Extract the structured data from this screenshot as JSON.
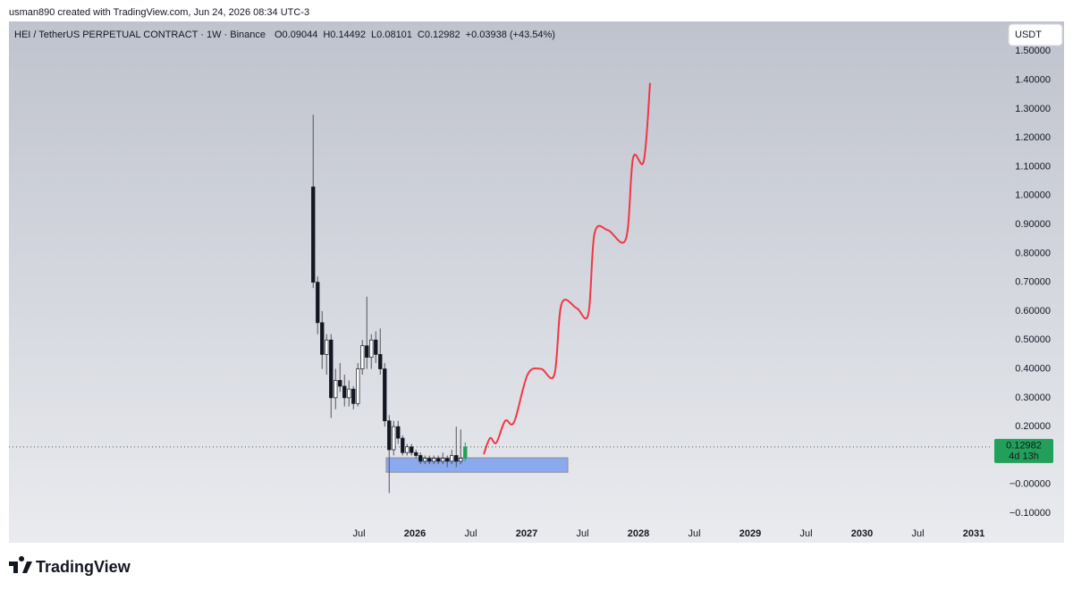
{
  "header": {
    "credit": "usman890 created with TradingView.com, Jun 24, 2026 08:34 UTC-3",
    "logo": "TradingView",
    "currency_button": "USDT"
  },
  "chart_data": {
    "type": "candlestick",
    "symbol": "HEI / TetherUS PERPETUAL CONTRACT · 1W · Binance",
    "ohlc_labels": [
      "O",
      "H",
      "L",
      "C"
    ],
    "change": "+0.03938 (+43.54%)",
    "countdown": "4d 13h",
    "up_color": "#ffffff",
    "down_color": "#131722",
    "last_color": "#22a05a",
    "x": [
      2025.09,
      2025.13,
      2025.17,
      2025.21,
      2025.25,
      2025.29,
      2025.33,
      2025.37,
      2025.41,
      2025.45,
      2025.49,
      2025.53,
      2025.57,
      2025.61,
      2025.65,
      2025.69,
      2025.73,
      2025.77,
      2025.81,
      2025.85,
      2025.89,
      2025.93,
      2025.97,
      2026.01,
      2026.05,
      2026.09,
      2026.13,
      2026.17,
      2026.21,
      2026.25,
      2026.29,
      2026.33,
      2026.37,
      2026.41,
      2026.45
    ],
    "open": [
      1.03,
      0.7,
      0.56,
      0.45,
      0.5,
      0.3,
      0.36,
      0.34,
      0.3,
      0.33,
      0.28,
      0.4,
      0.48,
      0.44,
      0.5,
      0.45,
      0.4,
      0.22,
      0.12,
      0.2,
      0.16,
      0.11,
      0.13,
      0.11,
      0.1,
      0.08,
      0.09,
      0.08,
      0.09,
      0.08,
      0.09,
      0.08,
      0.1,
      0.08,
      0.09044
    ],
    "high": [
      1.28,
      0.72,
      0.6,
      0.52,
      0.52,
      0.4,
      0.42,
      0.38,
      0.36,
      0.34,
      0.42,
      0.5,
      0.65,
      0.52,
      0.53,
      0.54,
      0.42,
      0.24,
      0.22,
      0.22,
      0.17,
      0.14,
      0.14,
      0.12,
      0.11,
      0.1,
      0.1,
      0.1,
      0.1,
      0.11,
      0.1,
      0.12,
      0.2,
      0.19,
      0.14492
    ],
    "low": [
      0.68,
      0.52,
      0.4,
      0.38,
      0.23,
      0.26,
      0.32,
      0.27,
      0.27,
      0.26,
      0.27,
      0.38,
      0.4,
      0.4,
      0.42,
      0.38,
      0.2,
      -0.03,
      0.1,
      0.14,
      0.1,
      0.1,
      0.1,
      0.09,
      0.07,
      0.07,
      0.07,
      0.07,
      0.07,
      0.07,
      0.06,
      0.07,
      0.06,
      0.07,
      0.08101
    ],
    "close": [
      0.7,
      0.56,
      0.45,
      0.5,
      0.3,
      0.36,
      0.34,
      0.3,
      0.33,
      0.28,
      0.4,
      0.48,
      0.44,
      0.5,
      0.45,
      0.4,
      0.22,
      0.12,
      0.2,
      0.16,
      0.11,
      0.13,
      0.11,
      0.1,
      0.08,
      0.09,
      0.08,
      0.09,
      0.08,
      0.09,
      0.08,
      0.1,
      0.08,
      0.09,
      0.12982
    ],
    "projection": {
      "color": "#f23645",
      "x": [
        2026.616,
        2026.672,
        2026.728,
        2026.808,
        2026.888,
        2027.008,
        2027.128,
        2027.248,
        2027.312,
        2027.448,
        2027.552,
        2027.608,
        2027.728,
        2027.888,
        2027.952,
        2028.048,
        2028.104
      ],
      "values": [
        0.104,
        0.16,
        0.144,
        0.22,
        0.216,
        0.38,
        0.4,
        0.38,
        0.625,
        0.61,
        0.59,
        0.87,
        0.88,
        0.85,
        1.13,
        1.12,
        1.39
      ]
    },
    "zone": {
      "color": "#7b9ff0",
      "x": [
        2025.744,
        2027.368
      ],
      "y": [
        0.042,
        0.092
      ]
    },
    "xlim": [
      2022.368,
      2031.168
    ],
    "xticks": [
      {
        "value": 2025.5,
        "label": "Jul"
      },
      2026,
      {
        "value": 2026.5,
        "label": "Jul"
      },
      2027,
      {
        "value": 2027.5,
        "label": "Jul"
      },
      2028,
      {
        "value": 2028.5,
        "label": "Jul"
      },
      2029,
      {
        "value": 2029.5,
        "label": "Jul"
      },
      2030,
      {
        "value": 2030.5,
        "label": "Jul"
      },
      2031
    ],
    "ylim": [
      -0.202,
      1.603
    ],
    "yticks": [
      {
        "value": -0.1,
        "label": "−0.10000"
      },
      {
        "value": 0,
        "label": "−0.00000"
      },
      {
        "value": 0.1,
        "label": "0.10000"
      },
      {
        "value": 0.2,
        "label": "0.20000"
      },
      {
        "value": 0.3,
        "label": "0.30000"
      },
      {
        "value": 0.4,
        "label": "0.40000"
      },
      {
        "value": 0.5,
        "label": "0.50000"
      },
      {
        "value": 0.6,
        "label": "0.60000"
      },
      {
        "value": 0.7,
        "label": "0.70000"
      },
      {
        "value": 0.8,
        "label": "0.80000"
      },
      {
        "value": 0.9,
        "label": "0.90000"
      },
      {
        "value": 1.0,
        "label": "1.00000"
      },
      {
        "value": 1.1,
        "label": "1.10000"
      },
      {
        "value": 1.2,
        "label": "1.20000"
      },
      {
        "value": 1.3,
        "label": "1.30000"
      },
      {
        "value": 1.4,
        "label": "1.40000"
      },
      {
        "value": 1.5,
        "label": "1.50000"
      }
    ],
    "grid": false
  }
}
